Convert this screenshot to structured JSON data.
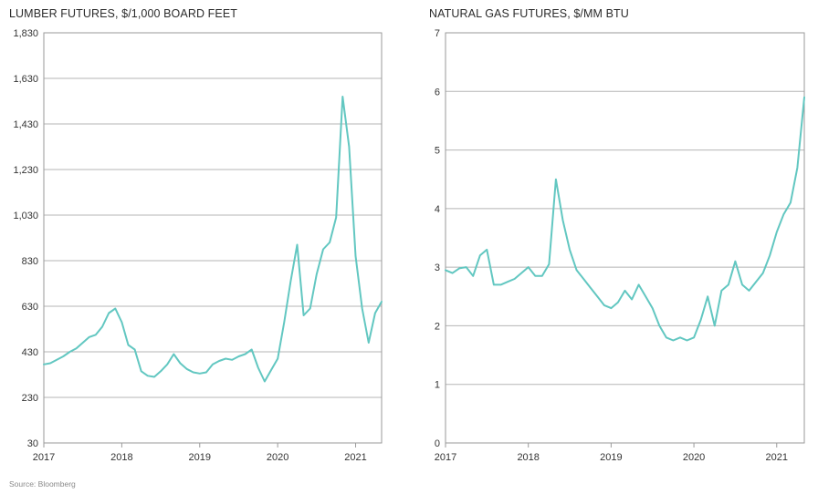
{
  "chart_data": [
    {
      "type": "line",
      "title": "LUMBER FUTURES, $/1,000 BOARD FEET",
      "xlabel": "",
      "ylabel": "",
      "x_ticks": [
        "2017",
        "2018",
        "2019",
        "2020",
        "2021"
      ],
      "y_ticks": [
        "1,830",
        "1,630",
        "1,430",
        "1,230",
        "1,030",
        "830",
        "630",
        "430",
        "230",
        "30"
      ],
      "ylim": [
        30,
        1830
      ],
      "xlim": [
        "2017-01",
        "2021-05"
      ],
      "grid": "horizontal",
      "color": "#62c7c1",
      "series": [
        {
          "name": "",
          "points": [
            [
              "2017-01",
              375
            ],
            [
              "2017-02",
              380
            ],
            [
              "2017-03",
              395
            ],
            [
              "2017-04",
              410
            ],
            [
              "2017-05",
              430
            ],
            [
              "2017-06",
              445
            ],
            [
              "2017-07",
              470
            ],
            [
              "2017-08",
              495
            ],
            [
              "2017-09",
              505
            ],
            [
              "2017-10",
              540
            ],
            [
              "2017-11",
              600
            ],
            [
              "2017-12",
              620
            ],
            [
              "2018-01",
              560
            ],
            [
              "2018-02",
              460
            ],
            [
              "2018-03",
              440
            ],
            [
              "2018-04",
              345
            ],
            [
              "2018-05",
              325
            ],
            [
              "2018-06",
              320
            ],
            [
              "2018-07",
              345
            ],
            [
              "2018-08",
              375
            ],
            [
              "2018-09",
              420
            ],
            [
              "2018-10",
              380
            ],
            [
              "2018-11",
              355
            ],
            [
              "2018-12",
              340
            ],
            [
              "2019-01",
              335
            ],
            [
              "2019-02",
              340
            ],
            [
              "2019-03",
              375
            ],
            [
              "2019-04",
              390
            ],
            [
              "2019-05",
              400
            ],
            [
              "2019-06",
              395
            ],
            [
              "2019-07",
              410
            ],
            [
              "2019-08",
              420
            ],
            [
              "2019-09",
              440
            ],
            [
              "2019-10",
              360
            ],
            [
              "2019-11",
              300
            ],
            [
              "2019-12",
              350
            ],
            [
              "2020-01",
              400
            ],
            [
              "2020-02",
              560
            ],
            [
              "2020-03",
              740
            ],
            [
              "2020-04",
              900
            ],
            [
              "2020-05",
              590
            ],
            [
              "2020-06",
              620
            ],
            [
              "2020-07",
              770
            ],
            [
              "2020-08",
              880
            ],
            [
              "2020-09",
              910
            ],
            [
              "2020-10",
              1020
            ],
            [
              "2020-11",
              1550
            ],
            [
              "2020-12",
              1330
            ],
            [
              "2021-01",
              850
            ],
            [
              "2021-02",
              620
            ],
            [
              "2021-03",
              470
            ],
            [
              "2021-04",
              600
            ],
            [
              "2021-05",
              650
            ]
          ]
        }
      ]
    },
    {
      "type": "line",
      "title": "NATURAL GAS FUTURES, $/MM BTU",
      "xlabel": "",
      "ylabel": "",
      "x_ticks": [
        "2017",
        "2018",
        "2019",
        "2020",
        "2021"
      ],
      "y_ticks": [
        "7",
        "6",
        "5",
        "4",
        "3",
        "2",
        "1",
        "0"
      ],
      "ylim": [
        0,
        7
      ],
      "xlim": [
        "2017-01",
        "2021-05"
      ],
      "grid": "horizontal",
      "color": "#62c7c1",
      "series": [
        {
          "name": "",
          "points": [
            [
              "2017-01",
              2.95
            ],
            [
              "2017-02",
              2.9
            ],
            [
              "2017-03",
              2.98
            ],
            [
              "2017-04",
              3.0
            ],
            [
              "2017-05",
              2.85
            ],
            [
              "2017-06",
              3.2
            ],
            [
              "2017-07",
              3.3
            ],
            [
              "2017-08",
              2.7
            ],
            [
              "2017-09",
              2.7
            ],
            [
              "2017-10",
              2.75
            ],
            [
              "2017-11",
              2.8
            ],
            [
              "2017-12",
              2.9
            ],
            [
              "2018-01",
              3.0
            ],
            [
              "2018-02",
              2.85
            ],
            [
              "2018-03",
              2.85
            ],
            [
              "2018-04",
              3.05
            ],
            [
              "2018-05",
              4.5
            ],
            [
              "2018-06",
              3.8
            ],
            [
              "2018-07",
              3.3
            ],
            [
              "2018-08",
              2.95
            ],
            [
              "2018-09",
              2.8
            ],
            [
              "2018-10",
              2.65
            ],
            [
              "2018-11",
              2.5
            ],
            [
              "2018-12",
              2.35
            ],
            [
              "2019-01",
              2.3
            ],
            [
              "2019-02",
              2.4
            ],
            [
              "2019-03",
              2.6
            ],
            [
              "2019-04",
              2.45
            ],
            [
              "2019-05",
              2.7
            ],
            [
              "2019-06",
              2.5
            ],
            [
              "2019-07",
              2.3
            ],
            [
              "2019-08",
              2.0
            ],
            [
              "2019-09",
              1.8
            ],
            [
              "2019-10",
              1.75
            ],
            [
              "2019-11",
              1.8
            ],
            [
              "2019-12",
              1.75
            ],
            [
              "2020-01",
              1.8
            ],
            [
              "2020-02",
              2.1
            ],
            [
              "2020-03",
              2.5
            ],
            [
              "2020-04",
              2.0
            ],
            [
              "2020-05",
              2.6
            ],
            [
              "2020-06",
              2.7
            ],
            [
              "2020-07",
              3.1
            ],
            [
              "2020-08",
              2.7
            ],
            [
              "2020-09",
              2.6
            ],
            [
              "2020-10",
              2.75
            ],
            [
              "2020-11",
              2.9
            ],
            [
              "2020-12",
              3.2
            ],
            [
              "2021-01",
              3.6
            ],
            [
              "2021-02",
              3.9
            ],
            [
              "2021-03",
              4.1
            ],
            [
              "2021-04",
              4.7
            ],
            [
              "2021-05",
              5.9
            ]
          ]
        }
      ]
    }
  ],
  "source": "Source: Bloomberg"
}
